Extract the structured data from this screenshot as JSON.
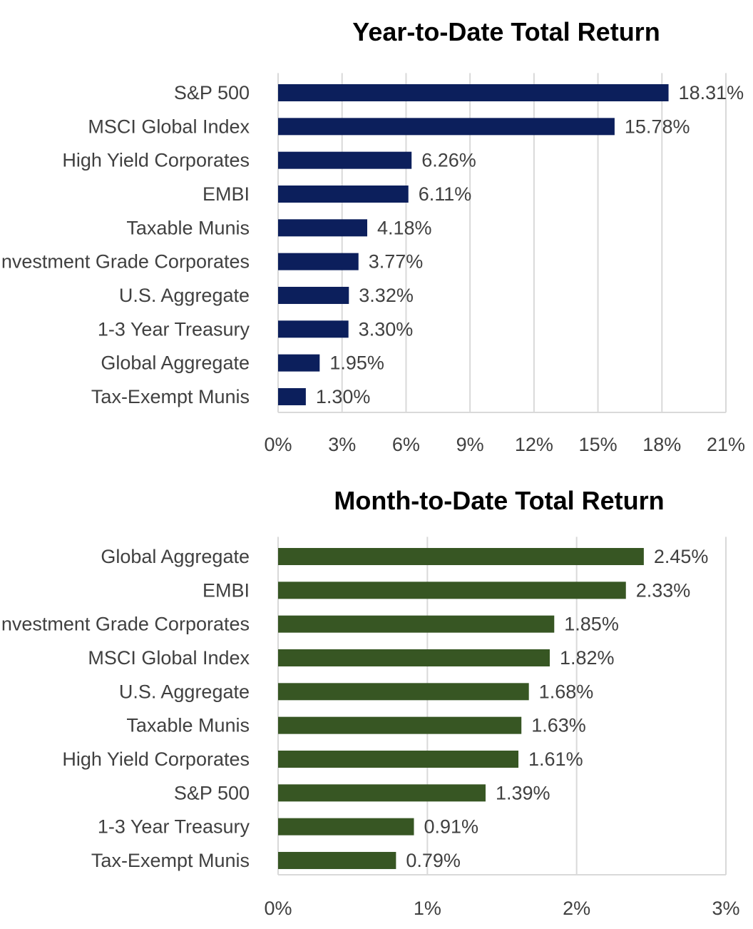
{
  "chart_data": [
    {
      "type": "bar",
      "orientation": "horizontal",
      "title": "Year-to-Date Total Return",
      "categories": [
        "S&P 500",
        "MSCI Global Index",
        "High Yield Corporates",
        "EMBI",
        "Taxable Munis",
        "Investment Grade Corporates",
        "U.S. Aggregate",
        "1-3 Year Treasury",
        "Global Aggregate",
        "Tax-Exempt Munis"
      ],
      "values": [
        18.31,
        15.78,
        6.26,
        6.11,
        4.18,
        3.77,
        3.32,
        3.3,
        1.95,
        1.3
      ],
      "value_labels": [
        "18.31%",
        "15.78%",
        "6.26%",
        "6.11%",
        "4.18%",
        "3.77%",
        "3.32%",
        "3.30%",
        "1.95%",
        "1.30%"
      ],
      "xlim": [
        0,
        21
      ],
      "xticks": [
        0,
        3,
        6,
        9,
        12,
        15,
        18,
        21
      ],
      "xtick_labels": [
        "0%",
        "3%",
        "6%",
        "9%",
        "12%",
        "15%",
        "18%",
        "21%"
      ],
      "bar_color": "#0c1f5c",
      "grid": true,
      "legend": "none",
      "xlabel": "",
      "ylabel": ""
    },
    {
      "type": "bar",
      "orientation": "horizontal",
      "title": "Month-to-Date Total Return",
      "categories": [
        "Global Aggregate",
        "EMBI",
        "Investment Grade Corporates",
        "MSCI Global Index",
        "U.S. Aggregate",
        "Taxable Munis",
        "High Yield Corporates",
        "S&P 500",
        "1-3 Year Treasury",
        "Tax-Exempt Munis"
      ],
      "values": [
        2.45,
        2.33,
        1.85,
        1.82,
        1.68,
        1.63,
        1.61,
        1.39,
        0.91,
        0.79
      ],
      "value_labels": [
        "2.45%",
        "2.33%",
        "1.85%",
        "1.82%",
        "1.68%",
        "1.63%",
        "1.61%",
        "1.39%",
        "0.91%",
        "0.79%"
      ],
      "xlim": [
        0,
        3
      ],
      "xticks": [
        0,
        1,
        2,
        3
      ],
      "xtick_labels": [
        "0%",
        "1%",
        "2%",
        "3%"
      ],
      "bar_color": "#375623",
      "grid": true,
      "legend": "none",
      "xlabel": "",
      "ylabel": ""
    }
  ]
}
